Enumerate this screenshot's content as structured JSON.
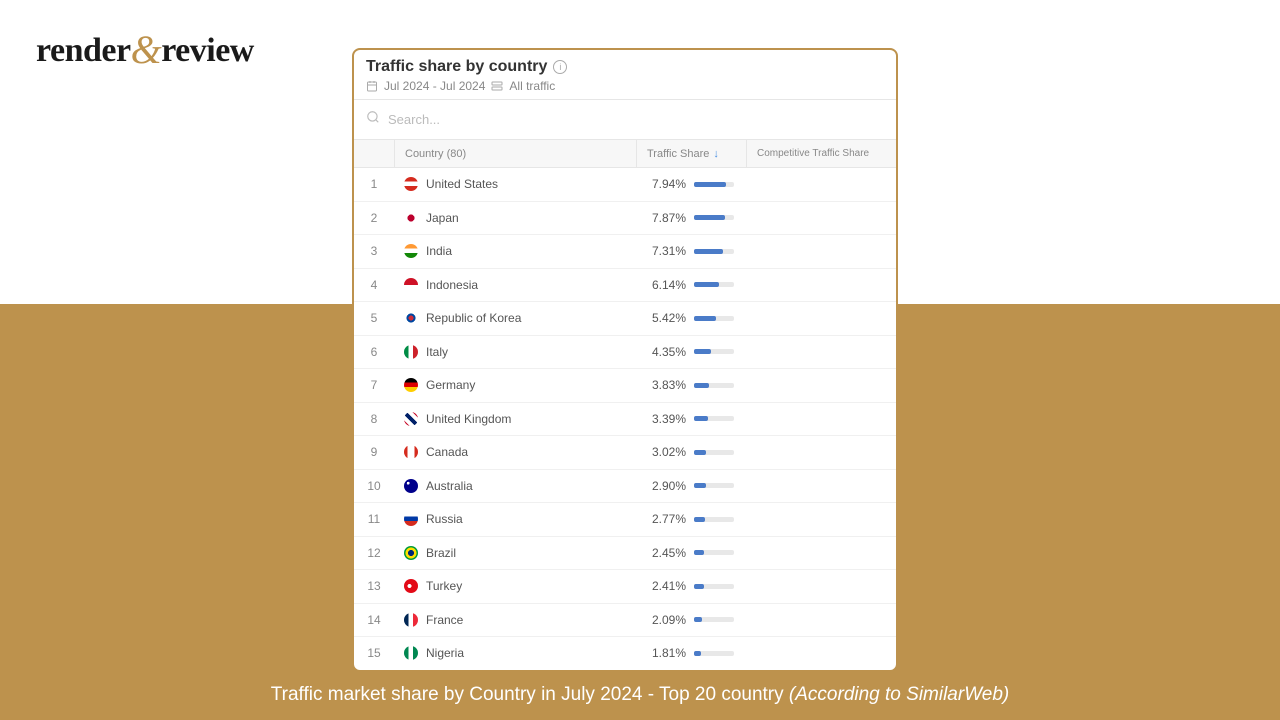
{
  "brand": {
    "part1": "render",
    "amp": "&",
    "part2": "review"
  },
  "panel": {
    "title": "Traffic share by country",
    "date_range": "Jul 2024 - Jul 2024",
    "traffic_filter": "All traffic",
    "search_placeholder": "Search...",
    "columns": {
      "country": "Country (80)",
      "share": "Traffic Share",
      "competitive": "Competitive Traffic Share"
    },
    "bar_color": "#4a7bc8",
    "bar_track_color": "#e8e8e8",
    "max_share": 10,
    "rows": [
      {
        "rank": 1,
        "country": "United States",
        "share": "7.94%",
        "share_val": 7.94,
        "flag_bg": "linear-gradient(#d52b1e 33%, #fff 33%, #fff 66%, #d52b1e 66%)"
      },
      {
        "rank": 2,
        "country": "Japan",
        "share": "7.87%",
        "share_val": 7.87,
        "flag_bg": "radial-gradient(circle, #bc002d 35%, #fff 36%)"
      },
      {
        "rank": 3,
        "country": "India",
        "share": "7.31%",
        "share_val": 7.31,
        "flag_bg": "linear-gradient(#ff9933 33%, #fff 33%, #fff 66%, #138808 66%)"
      },
      {
        "rank": 4,
        "country": "Indonesia",
        "share": "6.14%",
        "share_val": 6.14,
        "flag_bg": "linear-gradient(#ce1126 50%, #fff 50%)"
      },
      {
        "rank": 5,
        "country": "Republic of Korea",
        "share": "5.42%",
        "share_val": 5.42,
        "flag_bg": "radial-gradient(circle, #cd2e3a 25%, #0047a0 25%, #0047a0 45%, #fff 46%)"
      },
      {
        "rank": 6,
        "country": "Italy",
        "share": "4.35%",
        "share_val": 4.35,
        "flag_bg": "linear-gradient(90deg, #008c45 33%, #fff 33%, #fff 66%, #cd212a 66%)"
      },
      {
        "rank": 7,
        "country": "Germany",
        "share": "3.83%",
        "share_val": 3.83,
        "flag_bg": "linear-gradient(#000 33%, #dd0000 33%, #dd0000 66%, #ffce00 66%)"
      },
      {
        "rank": 8,
        "country": "United Kingdom",
        "share": "3.39%",
        "share_val": 3.39,
        "flag_bg": "linear-gradient(45deg,#c8102e 20%,#fff 20%,#fff 40%,#012169 40%,#012169 60%,#fff 60%,#fff 80%,#c8102e 80%)"
      },
      {
        "rank": 9,
        "country": "Canada",
        "share": "3.02%",
        "share_val": 3.02,
        "flag_bg": "linear-gradient(90deg,#d52b1e 25%,#fff 25%,#fff 75%,#d52b1e 75%)"
      },
      {
        "rank": 10,
        "country": "Australia",
        "share": "2.90%",
        "share_val": 2.9,
        "flag_bg": "radial-gradient(circle at 30% 30%, #fff 10%, #00008b 11%)"
      },
      {
        "rank": 11,
        "country": "Russia",
        "share": "2.77%",
        "share_val": 2.77,
        "flag_bg": "linear-gradient(#fff 33%, #0039a6 33%, #0039a6 66%, #d52b1e 66%)"
      },
      {
        "rank": 12,
        "country": "Brazil",
        "share": "2.45%",
        "share_val": 2.45,
        "flag_bg": "radial-gradient(circle, #002776 30%, #fedf00 31%, #fedf00 55%, #009b3a 56%)"
      },
      {
        "rank": 13,
        "country": "Turkey",
        "share": "2.41%",
        "share_val": 2.41,
        "flag_bg": "radial-gradient(circle at 40% 50%, #fff 18%, #e30a17 19%)"
      },
      {
        "rank": 14,
        "country": "France",
        "share": "2.09%",
        "share_val": 2.09,
        "flag_bg": "linear-gradient(90deg, #002654 33%, #fff 33%, #fff 66%, #ed2939 66%)"
      },
      {
        "rank": 15,
        "country": "Nigeria",
        "share": "1.81%",
        "share_val": 1.81,
        "flag_bg": "linear-gradient(90deg, #008751 33%, #fff 33%, #fff 66%, #008751 66%)"
      }
    ]
  },
  "caption": {
    "main": "Traffic market share by Country in July 2024 - Top 20 country ",
    "source": "(According to SimilarWeb)"
  },
  "colors": {
    "accent": "#bd924d",
    "panel_border": "#bd924d",
    "background": "#ffffff"
  }
}
